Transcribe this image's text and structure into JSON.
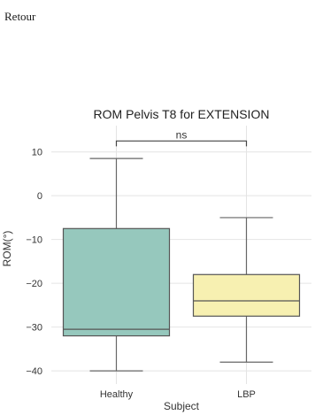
{
  "page": {
    "back_link_label": "Retour"
  },
  "chart_data": {
    "type": "box",
    "title": "ROM Pelvis T8 for EXTENSION",
    "xlabel": "Subject",
    "ylabel": "ROM(°)",
    "categories": [
      "Healthy",
      "LBP"
    ],
    "boxes": [
      {
        "category": "Healthy",
        "whisker_low": -40,
        "q1": -32,
        "median": -30.5,
        "q3": -7.5,
        "whisker_high": 8.5,
        "color": "#96c8bd"
      },
      {
        "category": "LBP",
        "whisker_low": -38,
        "q1": -27.5,
        "median": -24,
        "q3": -18,
        "whisker_high": -5,
        "color": "#f7f0b1"
      }
    ],
    "ylim": [
      -43,
      16
    ],
    "yticks": [
      10,
      0,
      -10,
      -20,
      -30,
      -40
    ],
    "grid": true,
    "annotation": {
      "label": "ns",
      "between": [
        "Healthy",
        "LBP"
      ],
      "y": 12.5
    },
    "colors": {
      "grid": "#e4e4e4",
      "box_edge": "#555555",
      "whisker": "#666666"
    }
  }
}
